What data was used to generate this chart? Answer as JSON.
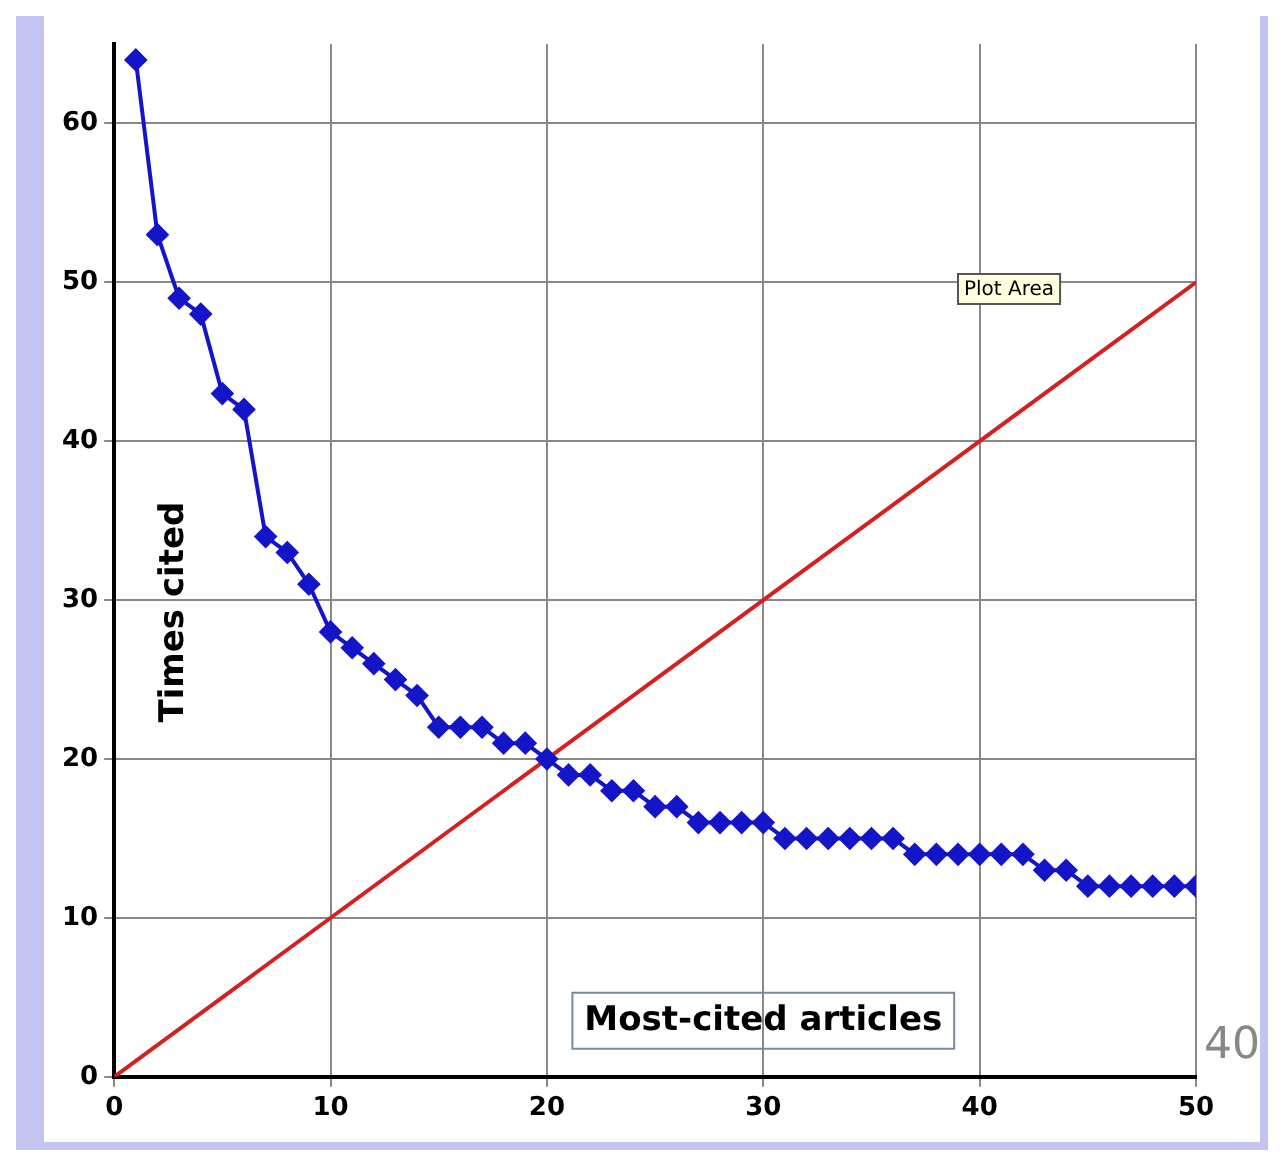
{
  "chart_data": {
    "type": "line",
    "xlabel": "Most-cited articles",
    "ylabel": "Times cited",
    "xlim": [
      0,
      50
    ],
    "xticks": [
      0,
      10,
      20,
      30,
      40,
      50
    ],
    "ylim": [
      0,
      65
    ],
    "yticks": [
      0,
      10,
      20,
      30,
      40,
      50,
      60
    ],
    "grid": true,
    "legend": false,
    "annotations": [
      "Plot Area",
      "40"
    ],
    "series": [
      {
        "color": "#1414c8",
        "marker": "diamond",
        "x": [
          1,
          2,
          3,
          4,
          5,
          6,
          7,
          8,
          9,
          10,
          11,
          12,
          13,
          14,
          15,
          16,
          17,
          18,
          19,
          20,
          21,
          22,
          23,
          24,
          25,
          26,
          27,
          28,
          29,
          30,
          31,
          32,
          33,
          34,
          35,
          36,
          37,
          38,
          39,
          40,
          41,
          42,
          43,
          44,
          45,
          46,
          47,
          48,
          49,
          50
        ],
        "values": [
          64,
          53,
          49,
          48,
          43,
          42,
          34,
          33,
          31,
          28,
          27,
          26,
          25,
          24,
          22,
          22,
          22,
          21,
          21,
          20,
          19,
          19,
          18,
          18,
          17,
          17,
          16,
          16,
          16,
          16,
          15,
          15,
          15,
          15,
          15,
          15,
          14,
          14,
          14,
          14,
          14,
          14,
          13,
          13,
          12,
          12,
          12,
          12,
          12,
          12
        ]
      },
      {
        "color": "#d42020",
        "marker": "none",
        "x": [
          0,
          50
        ],
        "values": [
          0,
          50
        ]
      }
    ]
  }
}
